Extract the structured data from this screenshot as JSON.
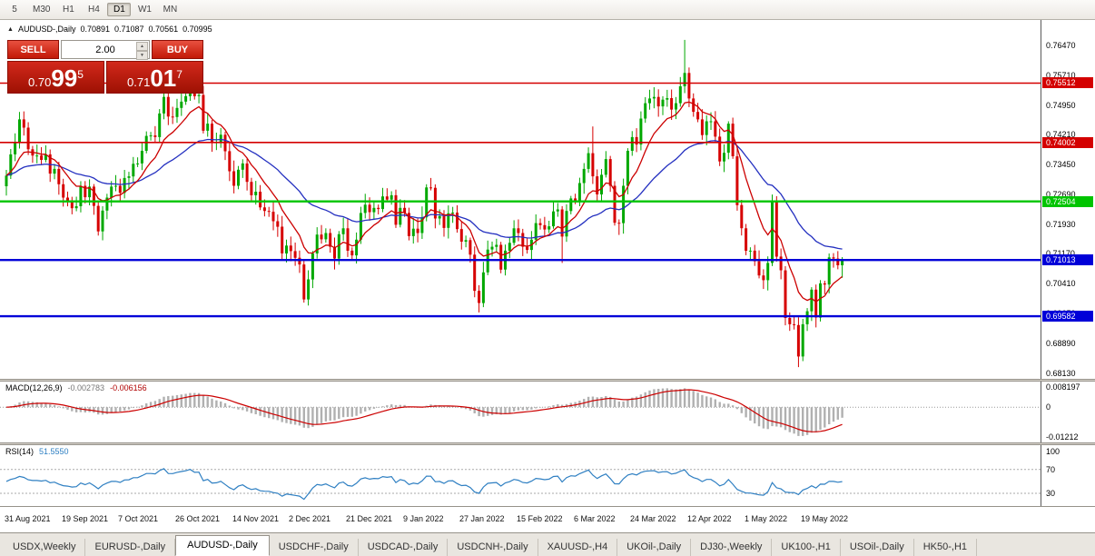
{
  "toolbar": {
    "timeframes": [
      "5",
      "M30",
      "H1",
      "H4",
      "D1",
      "W1",
      "MN"
    ],
    "active": "D1"
  },
  "chart_header": {
    "symbol": "AUDUSD-,Daily",
    "open": "0.70891",
    "high": "0.71087",
    "low": "0.70561",
    "close": "0.70995"
  },
  "icons": {
    "collapse_arrow": "▲",
    "spin_up": "▲",
    "spin_down": "▼"
  },
  "trade_panel": {
    "sell_label": "SELL",
    "buy_label": "BUY",
    "volume": "2.00",
    "sell_price": {
      "base": "0.70",
      "pips": "99",
      "point": "5"
    },
    "buy_price": {
      "base": "0.71",
      "pips": "01",
      "point": "7"
    }
  },
  "price_scale": {
    "ticks": [
      "0.76470",
      "0.75710",
      "0.74950",
      "0.74210",
      "0.73450",
      "0.72690",
      "0.71930",
      "0.71170",
      "0.70410",
      "0.69650",
      "0.68890",
      "0.68130"
    ]
  },
  "hlines": [
    {
      "label": "0.75512",
      "value": 0.75512,
      "color": "#d40000",
      "width": 1.6
    },
    {
      "label": "0.74002",
      "value": 0.74002,
      "color": "#d40000",
      "width": 1.6
    },
    {
      "label": "0.72504",
      "value": 0.72504,
      "color": "#00c400",
      "width": 2.4
    },
    {
      "label": "0.71013",
      "value": 0.71013,
      "color": "#0000d8",
      "width": 2.4
    },
    {
      "label": "0.69582",
      "value": 0.69582,
      "color": "#0000d8",
      "width": 2.4
    }
  ],
  "indicators": {
    "macd": {
      "name": "MACD(12,26,9)",
      "value_main": "-0.002783",
      "value_signal": "-0.006156",
      "params": [
        12,
        26,
        9
      ],
      "scale": [
        {
          "label": "0.008197",
          "value": 0.008197
        },
        {
          "label": "0",
          "value": 0
        },
        {
          "label": "-0.01212",
          "value": -0.01212
        }
      ]
    },
    "rsi": {
      "name": "RSI(14)",
      "value": "51.5550",
      "period": 14,
      "levels": [
        70,
        30
      ],
      "scale": [
        {
          "label": "100",
          "value": 100
        },
        {
          "label": "70",
          "value": 70
        },
        {
          "label": "30",
          "value": 30
        }
      ]
    }
  },
  "x_axis": {
    "labels": [
      "31 Aug 2021",
      "19 Sep 2021",
      "7 Oct 2021",
      "26 Oct 2021",
      "14 Nov 2021",
      "2 Dec 2021",
      "21 Dec 2021",
      "9 Jan 2022",
      "27 Jan 2022",
      "15 Feb 2022",
      "6 Mar 2022",
      "24 Mar 2022",
      "12 Apr 2022",
      "1 May 2022",
      "19 May 2022"
    ]
  },
  "tabs": {
    "items": [
      "USDX,Weekly",
      "EURUSD-,Daily",
      "AUDUSD-,Daily",
      "USDCHF-,Daily",
      "USDCAD-,Daily",
      "USDCNH-,Daily",
      "XAUUSD-,H4",
      "UKOil-,Daily",
      "DJ30-,Weekly",
      "UK100-,H1",
      "USOil-,Daily",
      "HK50-,H1"
    ],
    "active_index": 2
  },
  "colors": {
    "bull": "#00a800",
    "bear": "#d60000",
    "ma_fast": "#cc0000",
    "ma_slow": "#2430c0",
    "macd_hist": "#b0b0b0",
    "macd_signal": "#cc0000",
    "rsi_line": "#2e7fc2",
    "trade_button": "#d2281b",
    "hline_red": "#d40000",
    "hline_green": "#00c400",
    "hline_blue": "#0000d8"
  },
  "chart_data": {
    "type": "candlestick",
    "symbol": "AUDUSD",
    "timeframe": "Daily",
    "ylim": [
      0.6813,
      0.7647
    ],
    "first_open": 0.7289,
    "closes": [
      0.7316,
      0.737,
      0.74,
      0.7459,
      0.7438,
      0.7383,
      0.7367,
      0.7367,
      0.7356,
      0.737,
      0.7321,
      0.7333,
      0.7294,
      0.726,
      0.7251,
      0.7233,
      0.7238,
      0.729,
      0.7261,
      0.7288,
      0.7239,
      0.7174,
      0.7227,
      0.726,
      0.7288,
      0.729,
      0.7272,
      0.731,
      0.7314,
      0.7346,
      0.7347,
      0.7379,
      0.7417,
      0.7418,
      0.7414,
      0.7474,
      0.7516,
      0.7466,
      0.7465,
      0.7488,
      0.7504,
      0.7518,
      0.7544,
      0.7518,
      0.7521,
      0.743,
      0.7448,
      0.7399,
      0.7402,
      0.742,
      0.7378,
      0.7327,
      0.729,
      0.7331,
      0.7347,
      0.73,
      0.7266,
      0.7275,
      0.7235,
      0.7226,
      0.7224,
      0.72,
      0.7186,
      0.7118,
      0.7138,
      0.7124,
      0.7107,
      0.709,
      0.7001,
      0.7052,
      0.7118,
      0.7166,
      0.7154,
      0.717,
      0.7135,
      0.7105,
      0.7167,
      0.7182,
      0.7125,
      0.7113,
      0.7153,
      0.7221,
      0.7242,
      0.7223,
      0.7234,
      0.7231,
      0.7263,
      0.7255,
      0.7266,
      0.7191,
      0.7234,
      0.7221,
      0.7162,
      0.7181,
      0.717,
      0.721,
      0.7286,
      0.7285,
      0.7207,
      0.7213,
      0.7183,
      0.722,
      0.7222,
      0.718,
      0.7148,
      0.7152,
      0.7115,
      0.7023,
      0.6992,
      0.707,
      0.7128,
      0.7135,
      0.714,
      0.7077,
      0.7125,
      0.7145,
      0.7182,
      0.717,
      0.7135,
      0.7127,
      0.7153,
      0.7195,
      0.719,
      0.7179,
      0.7187,
      0.7225,
      0.723,
      0.7161,
      0.7226,
      0.7258,
      0.7253,
      0.7297,
      0.7333,
      0.7373,
      0.7314,
      0.7268,
      0.7318,
      0.7358,
      0.729,
      0.7196,
      0.7195,
      0.729,
      0.7379,
      0.7414,
      0.7395,
      0.7461,
      0.75,
      0.7512,
      0.7516,
      0.7492,
      0.7509,
      0.7513,
      0.7484,
      0.75,
      0.7543,
      0.7577,
      0.7512,
      0.7478,
      0.7459,
      0.7419,
      0.7454,
      0.7454,
      0.7415,
      0.7352,
      0.7374,
      0.7448,
      0.7365,
      0.7241,
      0.7182,
      0.7125,
      0.7125,
      0.7098,
      0.7062,
      0.705,
      0.7094,
      0.7252,
      0.711,
      0.7075,
      0.6954,
      0.6938,
      0.6936,
      0.6856,
      0.6938,
      0.6971,
      0.7026,
      0.6955,
      0.7042,
      0.7039,
      0.7108,
      0.7105,
      0.7088,
      0.71
    ],
    "key_wicks": {
      "3": {
        "h": 0.7478
      },
      "42": {
        "h": 0.7555
      },
      "68": {
        "l": 0.6993
      },
      "108": {
        "l": 0.6968
      },
      "127": {
        "l": 0.7094
      },
      "134": {
        "h": 0.7441
      },
      "140": {
        "l": 0.7165
      },
      "155": {
        "h": 0.7661
      },
      "181": {
        "l": 0.6829
      },
      "191": {
        "h": 0.71087,
        "l": 0.70561
      }
    }
  }
}
